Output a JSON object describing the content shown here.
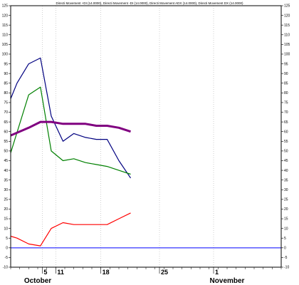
{
  "chart_data": {
    "type": "line",
    "title": "Directi Movement +DI (14.0000), Directi Movement -DI (14.0000), Directi Movement ADX (14.0000), Directi Movement DX (14.0000)",
    "ylim": [
      -10,
      125
    ],
    "y_ticks": [
      -10,
      -5,
      0,
      5,
      10,
      15,
      20,
      25,
      30,
      35,
      40,
      45,
      50,
      55,
      60,
      65,
      70,
      75,
      80,
      85,
      90,
      95,
      100,
      105,
      110,
      115,
      120,
      125
    ],
    "x_range": [
      0,
      30
    ],
    "x_ticks": [
      {
        "label": "5",
        "x": 3.5
      },
      {
        "label": "11",
        "x": 5
      },
      {
        "label": "18",
        "x": 10
      },
      {
        "label": "25",
        "x": 16.5
      },
      {
        "label": "1",
        "x": 22.5
      }
    ],
    "months": [
      {
        "label": "October",
        "x": 3
      },
      {
        "label": "November",
        "x": 24
      }
    ],
    "grid": true,
    "series": [
      {
        "color": "#000080",
        "width": 1.2,
        "x": [
          0,
          0.7,
          2,
          3.3,
          4.5,
          5.8,
          7,
          8.3,
          9.5,
          10.7,
          12,
          13.3
        ],
        "y": [
          77,
          85,
          95,
          98,
          68,
          55,
          59,
          57,
          56,
          56,
          45,
          36
        ]
      },
      {
        "color": "#008000",
        "width": 1.2,
        "x": [
          0,
          2,
          3.3,
          4.5,
          5.8,
          7,
          8.3,
          9.5,
          10.7,
          12,
          13.3
        ],
        "y": [
          49,
          79,
          83,
          50,
          45,
          46,
          44,
          43,
          42,
          40,
          38
        ]
      },
      {
        "color": "#800080",
        "width": 3,
        "x": [
          0,
          2,
          3.3,
          4.5,
          5.8,
          7,
          8.3,
          9.5,
          10.7,
          12,
          13.3
        ],
        "y": [
          58,
          62,
          65,
          65,
          64,
          64,
          64,
          63,
          63,
          62,
          60
        ]
      },
      {
        "color": "#ff0000",
        "width": 1.2,
        "x": [
          0,
          0.7,
          2,
          3.3,
          4.5,
          5.8,
          7,
          8.3,
          9.5,
          10.7,
          12,
          13.3
        ],
        "y": [
          6,
          5,
          2,
          1,
          10,
          13,
          12,
          12,
          12,
          12,
          15,
          18
        ]
      }
    ],
    "reference_line": {
      "y": 0,
      "color": "#0000ff"
    }
  }
}
